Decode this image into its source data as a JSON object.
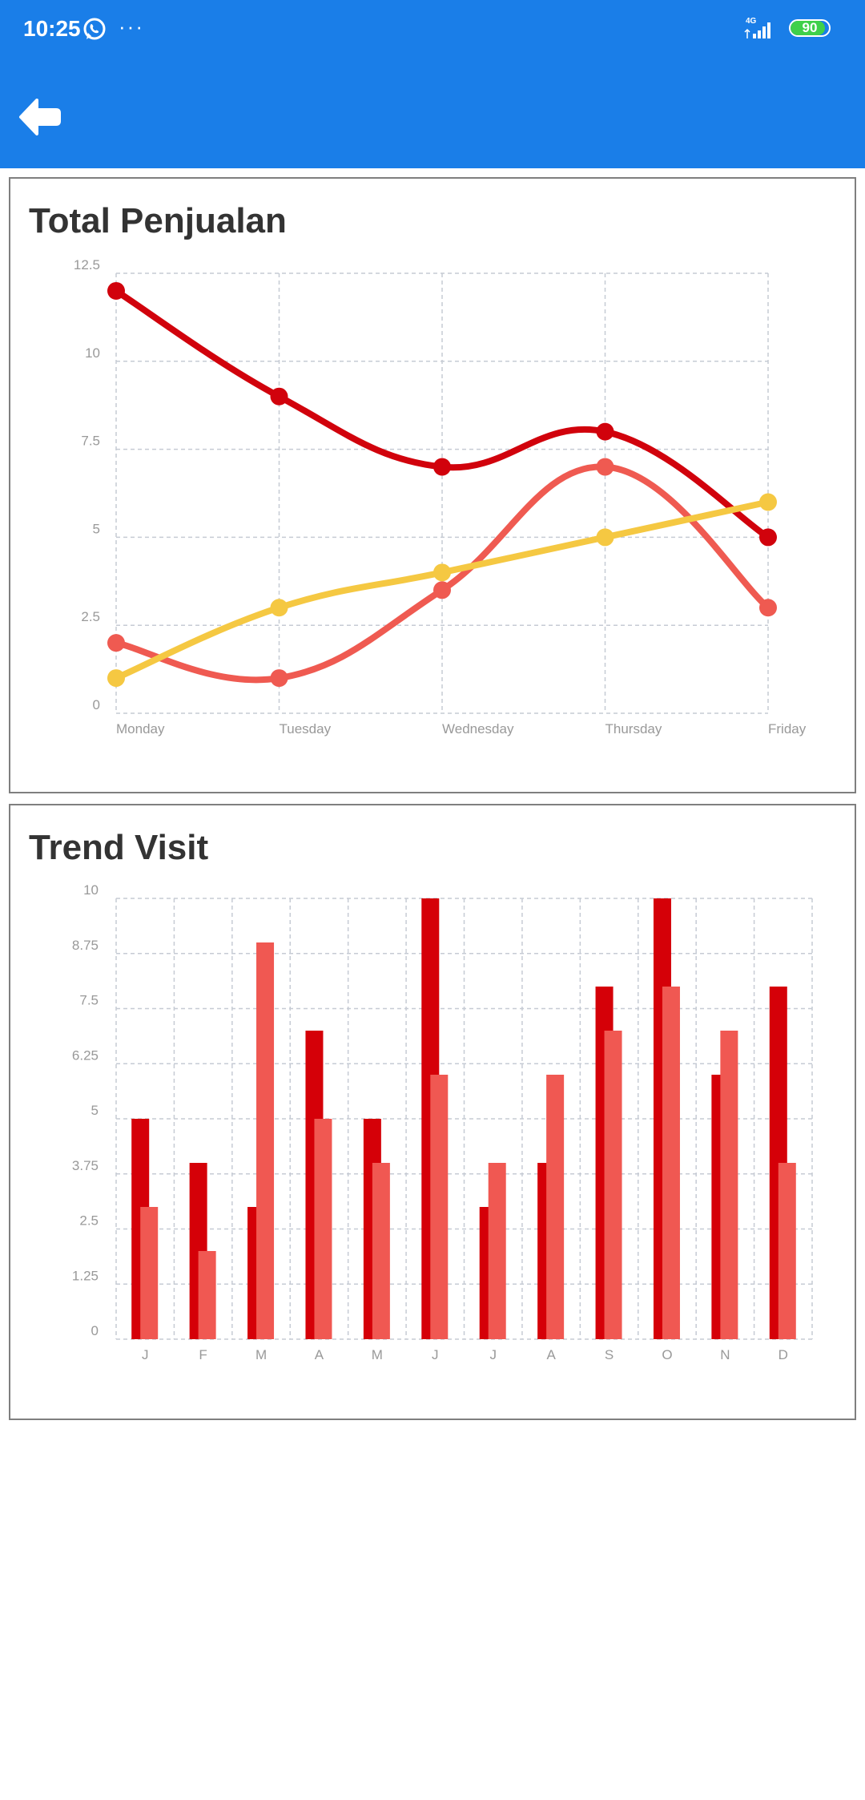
{
  "status_bar": {
    "time": "10:25",
    "overflow": "···",
    "network": "4G",
    "battery": "90",
    "battery_level": 0.9,
    "icons": [
      "whatsapp-icon",
      "signal-icon",
      "battery-icon"
    ]
  },
  "app_bar": {
    "back_icon": "arrow-left-icon",
    "color": "#1a7ee8"
  },
  "cards": {
    "sales": {
      "title": "Total Penjualan"
    },
    "visit": {
      "title": "Trend Visit"
    }
  },
  "chart_data": [
    {
      "type": "line",
      "title": "Total Penjualan",
      "categories": [
        "Monday",
        "Tuesday",
        "Wednesday",
        "Thursday",
        "Friday"
      ],
      "ylim": [
        0,
        12.5
      ],
      "yticks": [
        "0",
        "2.5",
        "5",
        "7.5",
        "10",
        "12.5"
      ],
      "grid": true,
      "curve": "smooth",
      "series": [
        {
          "color": "#d1020c",
          "values": [
            12,
            9,
            7,
            8,
            5
          ]
        },
        {
          "color": "#ef5a51",
          "values": [
            2,
            1,
            3.5,
            7,
            3
          ]
        },
        {
          "color": "#f5c842",
          "values": [
            1,
            3,
            4,
            5,
            6
          ]
        }
      ]
    },
    {
      "type": "bar",
      "title": "Trend Visit",
      "categories": [
        "J",
        "F",
        "M",
        "A",
        "M",
        "J",
        "J",
        "A",
        "S",
        "O",
        "N",
        "D"
      ],
      "ylim": [
        0,
        10
      ],
      "yticks": [
        "0",
        "1.25",
        "2.5",
        "3.75",
        "5",
        "6.25",
        "7.5",
        "8.75",
        "10"
      ],
      "grid": true,
      "series": [
        {
          "color": "#d50008",
          "values": [
            5,
            4,
            3,
            7,
            5,
            10,
            3,
            4,
            8,
            10,
            6,
            8
          ]
        },
        {
          "color": "#f05852",
          "values": [
            3,
            2,
            9,
            5,
            4,
            6,
            4,
            6,
            7,
            8,
            7,
            4
          ]
        }
      ]
    }
  ]
}
